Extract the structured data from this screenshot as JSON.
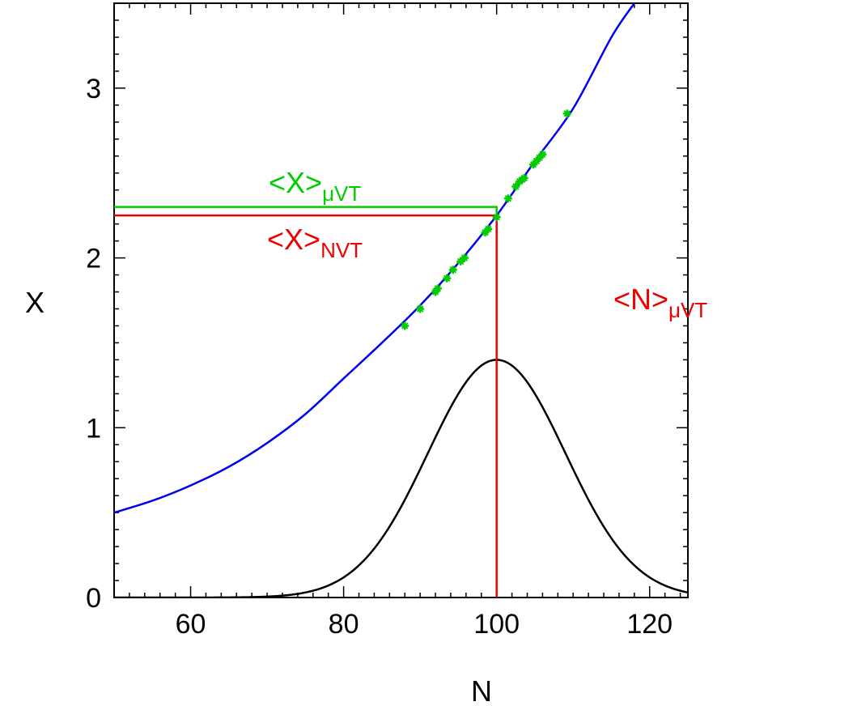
{
  "chart_data": {
    "type": "line",
    "title": "",
    "xlabel": "N",
    "ylabel": "X",
    "xlim": [
      50,
      125
    ],
    "ylim": [
      0,
      3.5
    ],
    "x_ticks": [
      60,
      80,
      100,
      120
    ],
    "y_ticks": [
      0,
      1,
      2,
      3
    ],
    "grid": false,
    "colors": {
      "curve": "#0000ee",
      "markers": "#00cc00",
      "nvt": "#ee0000",
      "distribution": "#000000"
    },
    "curve": {
      "x": [
        50,
        55,
        60,
        65,
        70,
        75,
        80,
        85,
        90,
        95,
        100,
        105,
        110,
        115,
        118
      ],
      "y": [
        0.5,
        0.57,
        0.66,
        0.77,
        0.91,
        1.08,
        1.29,
        1.5,
        1.72,
        1.97,
        2.25,
        2.57,
        2.88,
        3.3,
        3.5
      ]
    },
    "distribution": {
      "peak_x": 100,
      "peak_y": 1.4,
      "sigma": 9,
      "x": [
        50,
        60,
        65,
        70,
        75,
        80,
        85,
        90,
        95,
        100,
        105,
        110,
        115,
        120,
        125
      ],
      "y": [
        0,
        0.003,
        0.03,
        0.05,
        0.15,
        0.13,
        0.35,
        0.75,
        1.2,
        1.4,
        1.2,
        0.75,
        0.35,
        0.13,
        0.03
      ]
    },
    "samples": {
      "x": [
        88,
        90,
        92,
        92.3,
        93.5,
        94.3,
        95.3,
        95.8,
        98.5,
        98.9,
        100,
        101.5,
        102.5,
        103,
        103.3,
        103.6,
        104.8,
        105.2,
        105.6,
        106,
        109.2
      ],
      "y": [
        1.6,
        1.7,
        1.8,
        1.82,
        1.88,
        1.93,
        1.98,
        2.0,
        2.15,
        2.17,
        2.24,
        2.35,
        2.42,
        2.45,
        2.46,
        2.47,
        2.55,
        2.57,
        2.59,
        2.61,
        2.85
      ]
    },
    "annotations": {
      "x_muvt": {
        "main": "<X>",
        "sub": "μVT",
        "value": 2.3,
        "color": "#00cc00"
      },
      "x_nvt": {
        "main": "<X>",
        "sub": "NVT",
        "value": 2.25,
        "color": "#ee0000"
      },
      "n_muvt": {
        "main": "<N>",
        "sub": "μVT",
        "value": 100,
        "color": "#ee0000"
      }
    }
  }
}
